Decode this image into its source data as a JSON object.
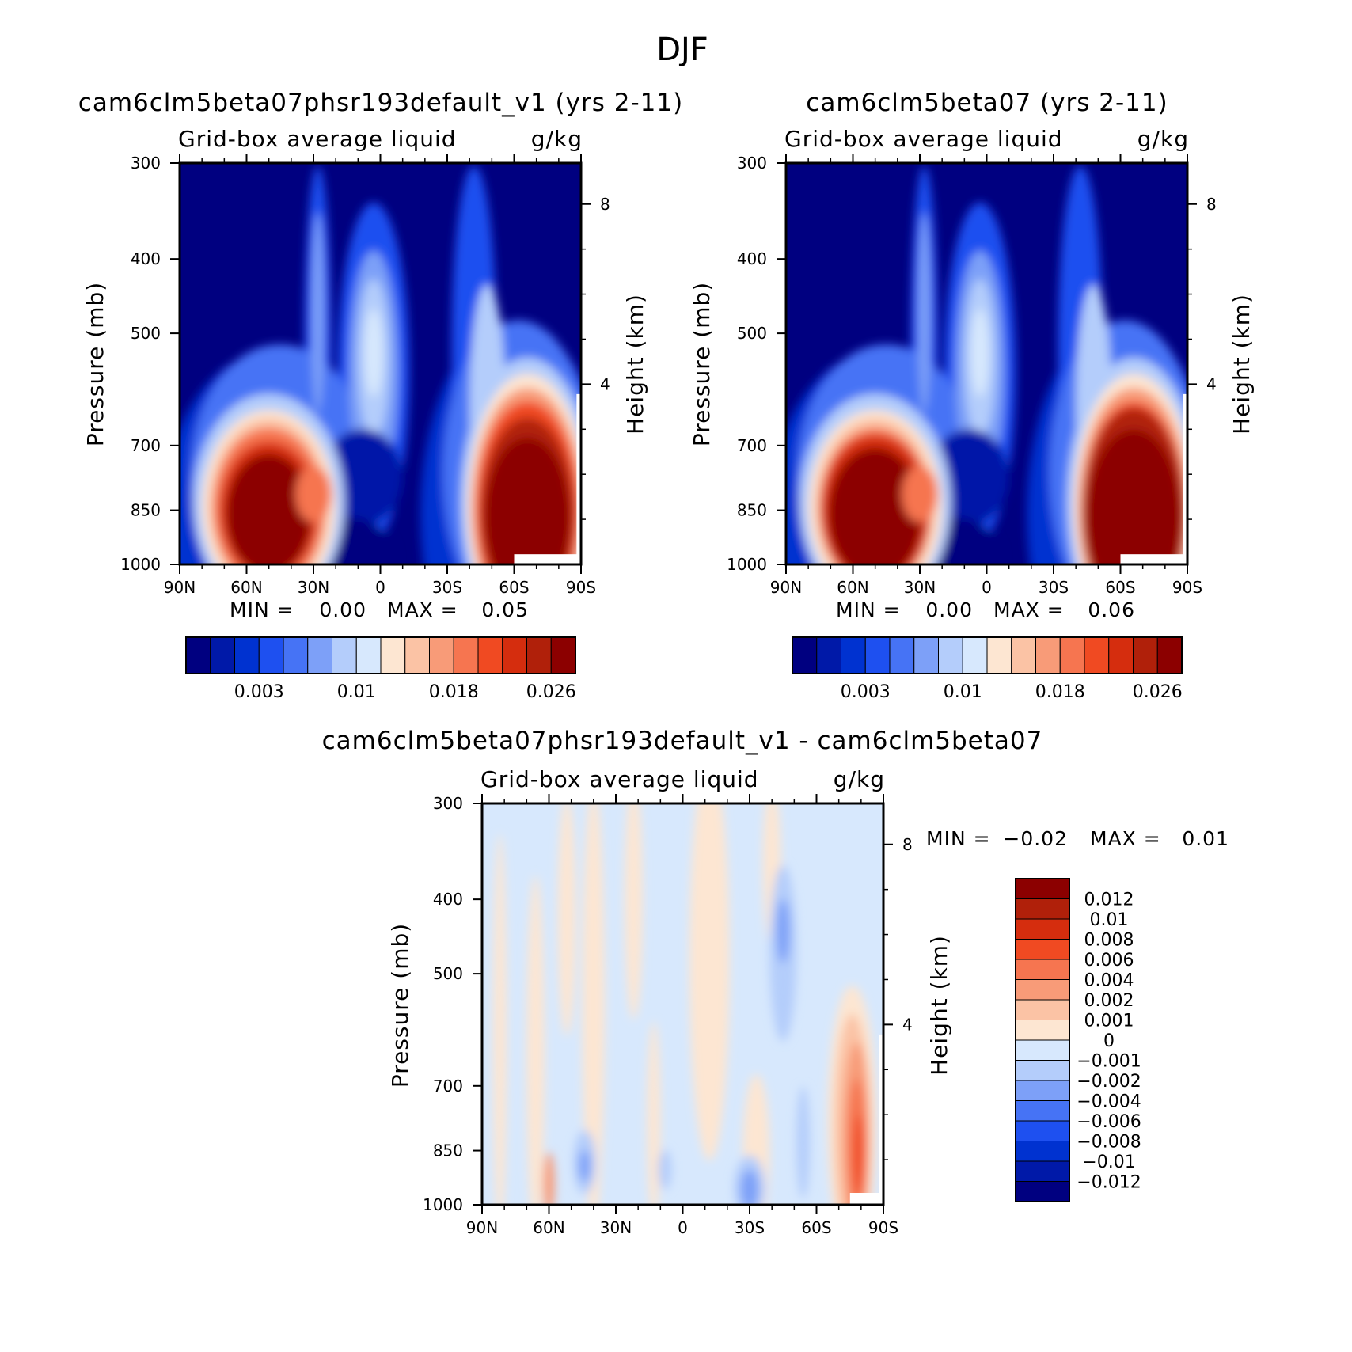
{
  "figure": {
    "title": "DJF"
  },
  "chart_data": [
    {
      "type": "heatmap",
      "title": "cam6clm5beta07phsr193default_v1 (yrs 2-11)",
      "variable": "Grid-box average liquid",
      "units": "g/kg",
      "xlabel": "",
      "ylabel": "Pressure (mb)",
      "y2label": "Height (km)",
      "x_ticks": [
        "90N",
        "60N",
        "30N",
        "0",
        "30S",
        "60S",
        "90S"
      ],
      "x_values": [
        90,
        60,
        30,
        0,
        -30,
        -60,
        -90
      ],
      "y_ticks": [
        "300",
        "400",
        "500",
        "700",
        "850",
        "1000"
      ],
      "y_values": [
        300,
        400,
        500,
        700,
        850,
        1000
      ],
      "y2_ticks": [
        "8",
        "4"
      ],
      "ylim": [
        1000,
        300
      ],
      "min_label": "MIN =",
      "min_value": "0.00",
      "max_label": "MAX =",
      "max_value": "0.05",
      "colorbar_labels": [
        "0.003",
        "0.01",
        "0.018",
        "0.026"
      ],
      "features": [
        {
          "lat": 50,
          "p": 860,
          "value": 0.035
        },
        {
          "lat": -65,
          "p": 860,
          "value": 0.045
        },
        {
          "lat": 3,
          "p": 540,
          "value": 0.009
        },
        {
          "lat": 28,
          "p": 450,
          "value": 0.005
        },
        {
          "lat": -50,
          "p": 520,
          "value": 0.008
        }
      ]
    },
    {
      "type": "heatmap",
      "title": "cam6clm5beta07 (yrs 2-11)",
      "variable": "Grid-box average liquid",
      "units": "g/kg",
      "xlabel": "",
      "ylabel": "Pressure (mb)",
      "y2label": "Height (km)",
      "x_ticks": [
        "90N",
        "60N",
        "30N",
        "0",
        "30S",
        "60S",
        "90S"
      ],
      "x_values": [
        90,
        60,
        30,
        0,
        -30,
        -60,
        -90
      ],
      "y_ticks": [
        "300",
        "400",
        "500",
        "700",
        "850",
        "1000"
      ],
      "y_values": [
        300,
        400,
        500,
        700,
        850,
        1000
      ],
      "y2_ticks": [
        "8",
        "4"
      ],
      "ylim": [
        1000,
        300
      ],
      "min_label": "MIN =",
      "min_value": "0.00",
      "max_label": "MAX =",
      "max_value": "0.06",
      "colorbar_labels": [
        "0.003",
        "0.01",
        "0.018",
        "0.026"
      ],
      "features": [
        {
          "lat": 50,
          "p": 860,
          "value": 0.04
        },
        {
          "lat": -65,
          "p": 860,
          "value": 0.05
        },
        {
          "lat": 3,
          "p": 540,
          "value": 0.01
        },
        {
          "lat": 28,
          "p": 450,
          "value": 0.005
        },
        {
          "lat": -50,
          "p": 520,
          "value": 0.008
        }
      ]
    },
    {
      "type": "heatmap",
      "title": "cam6clm5beta07phsr193default_v1 - cam6clm5beta07",
      "variable": "Grid-box average liquid",
      "units": "g/kg",
      "xlabel": "",
      "ylabel": "Pressure (mb)",
      "y2label": "Height (km)",
      "x_ticks": [
        "90N",
        "60N",
        "30N",
        "0",
        "30S",
        "60S",
        "90S"
      ],
      "x_values": [
        90,
        60,
        30,
        0,
        -30,
        -60,
        -90
      ],
      "y_ticks": [
        "300",
        "400",
        "500",
        "700",
        "850",
        "1000"
      ],
      "y_values": [
        300,
        400,
        500,
        700,
        850,
        1000
      ],
      "y2_ticks": [
        "8",
        "4"
      ],
      "ylim": [
        1000,
        300
      ],
      "min_label": "MIN =",
      "min_value": "−0.02",
      "max_label": "MAX =",
      "max_value": "0.01",
      "colorbar_labels": [
        "0.012",
        "0.01",
        "0.008",
        "0.006",
        "0.004",
        "0.002",
        "0.001",
        "0",
        "−0.001",
        "−0.002",
        "−0.004",
        "−0.006",
        "−0.008",
        "−0.01",
        "−0.012"
      ],
      "features": [
        {
          "lat": -78,
          "p": 830,
          "value": 0.008
        },
        {
          "lat": -45,
          "p": 480,
          "value": -0.003
        },
        {
          "lat": 45,
          "p": 890,
          "value": -0.003
        },
        {
          "lat": -30,
          "p": 950,
          "value": -0.004
        },
        {
          "lat": 60,
          "p": 940,
          "value": 0.005
        }
      ]
    }
  ],
  "colors": {
    "field_palette": [
      "#000080",
      "#0019a8",
      "#0032d0",
      "#1e50f0",
      "#4673f5",
      "#7da0f8",
      "#b4cdfb",
      "#d7e8fd",
      "#fde6d2",
      "#fbc3a5",
      "#f89b78",
      "#f67550",
      "#f04a22",
      "#d52d0e",
      "#b0200a",
      "#8c0000"
    ],
    "diff_palette": [
      "#000080",
      "#0019a8",
      "#0032d0",
      "#1e50f0",
      "#4673f5",
      "#7da0f8",
      "#b4cdfb",
      "#d7e8fd",
      "#fde6d2",
      "#fbc3a5",
      "#f89b78",
      "#f67550",
      "#f04a22",
      "#d52d0e",
      "#b0200a",
      "#8c0000"
    ]
  }
}
